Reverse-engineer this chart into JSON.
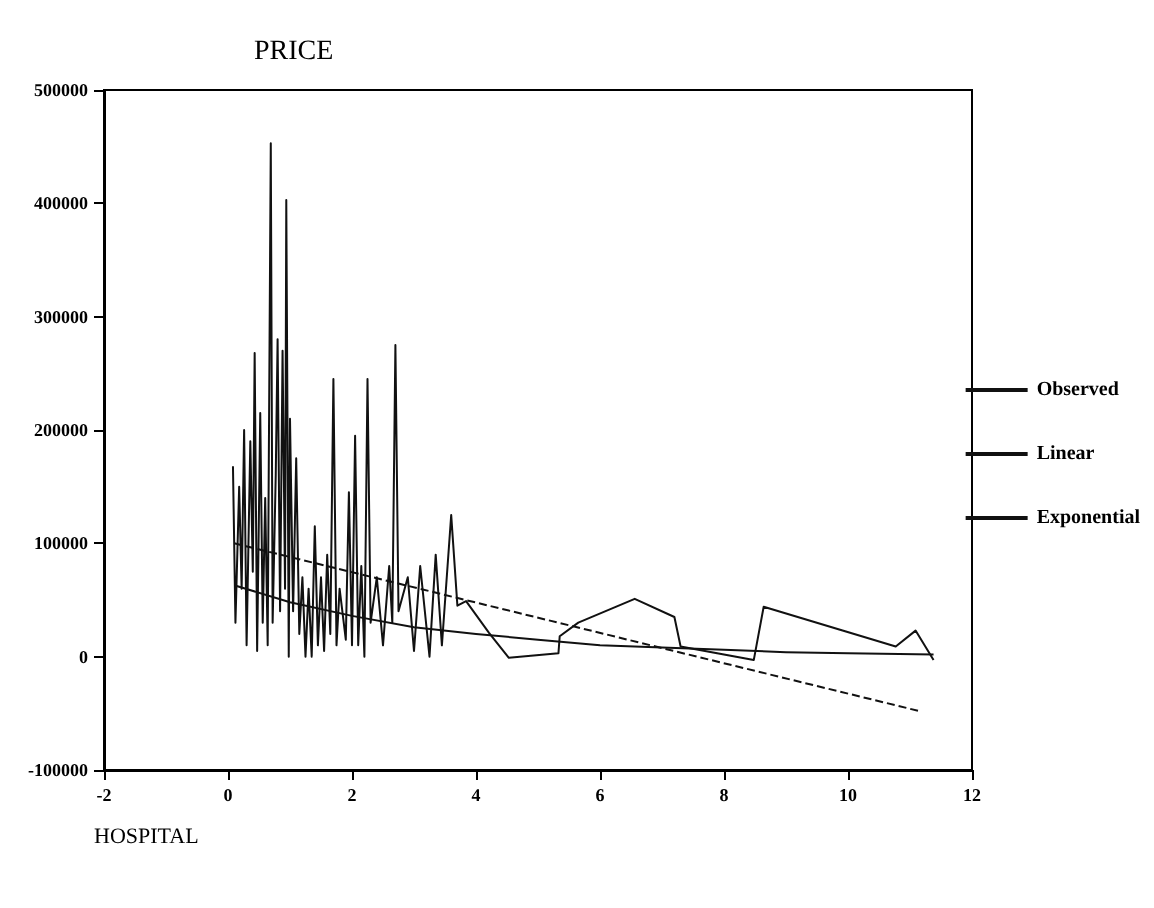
{
  "chart_data": {
    "type": "line",
    "title": "PRICE",
    "xlabel": "HOSPITAL",
    "xlim": [
      -2,
      12
    ],
    "xticks": [
      -2,
      0,
      2,
      4,
      6,
      8,
      10,
      12
    ],
    "ylim": [
      -100000,
      500000
    ],
    "yticks": [
      -100000,
      0,
      100000,
      200000,
      300000,
      400000,
      500000
    ],
    "grid": false,
    "legend": "right",
    "marker": "none",
    "series": [
      {
        "name": "Observed",
        "color": "#111111",
        "line_style": "solid",
        "x": [
          0.08,
          0.12,
          0.18,
          0.22,
          0.26,
          0.3,
          0.36,
          0.4,
          0.43,
          0.47,
          0.52,
          0.56,
          0.6,
          0.64,
          0.69,
          0.72,
          0.77,
          0.8,
          0.84,
          0.88,
          0.92,
          0.94,
          0.98,
          1.0,
          1.05,
          1.1,
          1.15,
          1.2,
          1.25,
          1.3,
          1.35,
          1.4,
          1.45,
          1.5,
          1.55,
          1.6,
          1.65,
          1.7,
          1.75,
          1.8,
          1.9,
          1.95,
          2.0,
          2.05,
          2.1,
          2.15,
          2.2,
          2.25,
          2.3,
          2.4,
          2.5,
          2.6,
          2.65,
          2.7,
          2.75,
          2.9,
          3.0,
          3.1,
          3.25,
          3.35,
          3.45,
          3.6,
          3.7,
          3.84,
          4.21,
          4.53,
          5.33,
          5.35,
          5.65,
          6.56,
          7.2,
          7.3,
          8.48,
          8.64,
          10.77,
          11.09,
          11.38
        ],
        "values": [
          168000,
          30000,
          150000,
          60000,
          200000,
          10000,
          190000,
          75000,
          268000,
          5000,
          215000,
          30000,
          140000,
          10000,
          453000,
          30000,
          160000,
          280000,
          40000,
          270000,
          60000,
          403000,
          0,
          210000,
          40000,
          175000,
          20000,
          70000,
          0,
          60000,
          0,
          115000,
          10000,
          70000,
          5000,
          90000,
          20000,
          245000,
          10000,
          60000,
          15000,
          145000,
          10000,
          195000,
          10000,
          80000,
          0,
          245000,
          30000,
          70000,
          10000,
          80000,
          30000,
          275000,
          40000,
          70000,
          5000,
          80000,
          0,
          90000,
          10000,
          125000,
          45000,
          49000,
          21000,
          -1000,
          3000,
          18000,
          30000,
          51000,
          35000,
          9000,
          -3000,
          44000,
          9000,
          23000,
          -3000
        ]
      },
      {
        "name": "Linear",
        "color": "#111111",
        "line_style": "dashed",
        "x": [
          0.1,
          11.15
        ],
        "values": [
          100000,
          -48000
        ]
      },
      {
        "name": "Exponential",
        "color": "#111111",
        "line_style": "solid",
        "x": [
          0.1,
          1,
          2,
          3,
          4,
          5,
          6,
          7,
          8,
          9,
          10,
          11.38
        ],
        "values": [
          63000,
          48000,
          36000,
          26000,
          20000,
          15000,
          10000,
          8000,
          6000,
          4000,
          3000,
          2000
        ]
      }
    ]
  }
}
